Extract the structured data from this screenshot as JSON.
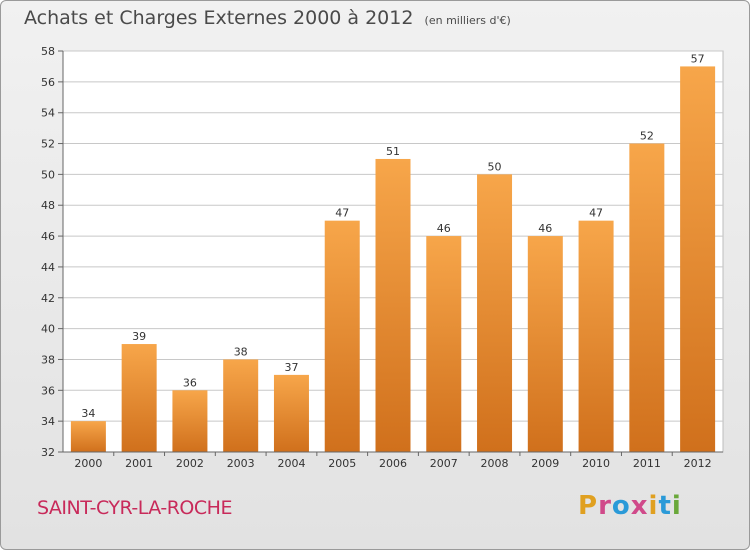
{
  "header": {
    "title": "Achats et Charges Externes 2000 à 2012",
    "unit": "(en milliers d'€)"
  },
  "commune": "SAINT-CYR-LA-ROCHE",
  "logo": {
    "text": "Proxiti",
    "letter_colors": [
      "#e0a020",
      "#d04a8a",
      "#2a9ad8",
      "#d04a8a",
      "#e0a020",
      "#2a9ad8",
      "#6aa83a"
    ]
  },
  "colors": {
    "bar_light": "#f7a64a",
    "bar_dark": "#d0701c",
    "grid": "#c8c8c8",
    "plot_bg": "#ffffff"
  },
  "chart_data": {
    "type": "bar",
    "title": "Achats et Charges Externes 2000 à 2012",
    "subtitle": "(en milliers d'€)",
    "categories": [
      "2000",
      "2001",
      "2002",
      "2003",
      "2004",
      "2005",
      "2006",
      "2007",
      "2008",
      "2009",
      "2010",
      "2011",
      "2012"
    ],
    "values": [
      34,
      39,
      36,
      38,
      37,
      47,
      51,
      46,
      50,
      46,
      47,
      52,
      57
    ],
    "ylim": [
      32,
      58
    ],
    "yticks": [
      32,
      34,
      36,
      38,
      40,
      42,
      44,
      46,
      48,
      50,
      52,
      54,
      56,
      58
    ],
    "grid": true,
    "data_labels": true
  }
}
